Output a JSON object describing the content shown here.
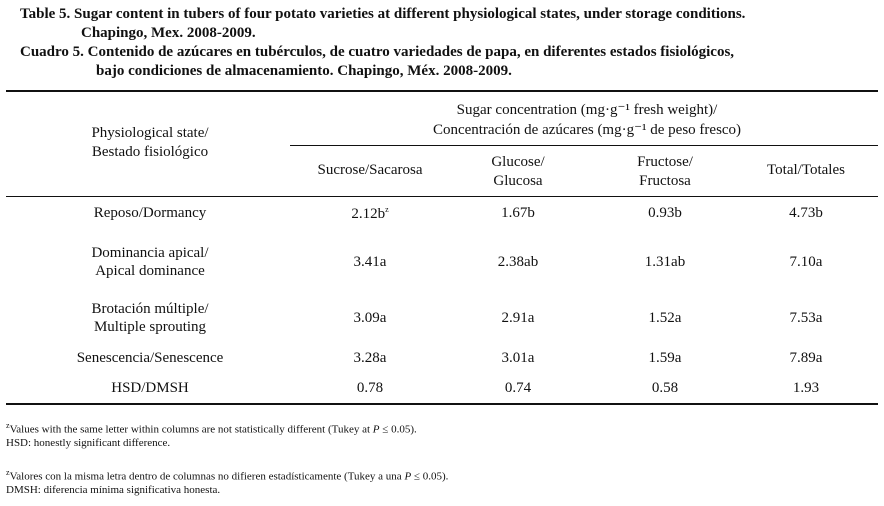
{
  "title": {
    "en": [
      "Table 5. Sugar content in tubers of four potato varieties at different physiological states, under storage conditions.",
      "Chapingo, Mex. 2008-2009."
    ],
    "es": [
      "Cuadro 5. Contenido de azúcares en tubérculos, de cuatro variedades de papa, en diferentes estados fisiológicos,",
      "bajo condiciones de almacenamiento. Chapingo, Méx. 2008-2009."
    ]
  },
  "table": {
    "header": {
      "state": [
        "Physiological state/",
        "Bestado fisiológico"
      ],
      "group": [
        "Sugar concentration (mg·g⁻¹ fresh weight)/",
        "Concentración de azúcares (mg·g⁻¹ de peso fresco)"
      ],
      "columns": [
        [
          "Sucrose/Sacarosa"
        ],
        [
          "Glucose/",
          "Glucosa"
        ],
        [
          "Fructose/",
          "Fructosa"
        ],
        [
          "Total/Totales"
        ]
      ]
    },
    "rows": [
      {
        "state": [
          "Reposo/Dormancy"
        ],
        "cells": [
          "2.12b",
          "1.67b",
          "0.93b",
          "4.73b"
        ],
        "note": "z"
      },
      {
        "state": [
          "Dominancia apical/",
          "Apical dominance"
        ],
        "cells": [
          "3.41a",
          "2.38ab",
          "1.31ab",
          "7.10a"
        ]
      },
      {
        "state": [
          "Brotación múltiple/",
          "Multiple sprouting"
        ],
        "cells": [
          "3.09a",
          "2.91a",
          "1.52a",
          "7.53a"
        ]
      },
      {
        "state": [
          "Senescencia/Senescence"
        ],
        "cells": [
          "3.28a",
          "3.01a",
          "1.59a",
          "7.89a"
        ]
      },
      {
        "state": [
          "HSD/DMSH"
        ],
        "cells": [
          "0.78",
          "0.74",
          "0.58",
          "1.93"
        ]
      }
    ]
  },
  "footnotes": [
    {
      "mark": "z",
      "before": "Values with the same letter within columns are not statistically different (Tukey at ",
      "italic": "P",
      "after": " ≤ 0.05)."
    },
    {
      "text": "HSD: honestly significant difference."
    },
    {
      "mark": "z",
      "before": "Valores con la misma letra dentro de columnas no difieren estadísticamente (Tukey a una ",
      "italic": "P",
      "after": " ≤ 0.05)."
    },
    {
      "text": "DMSH: diferencia mínima significativa honesta."
    }
  ]
}
